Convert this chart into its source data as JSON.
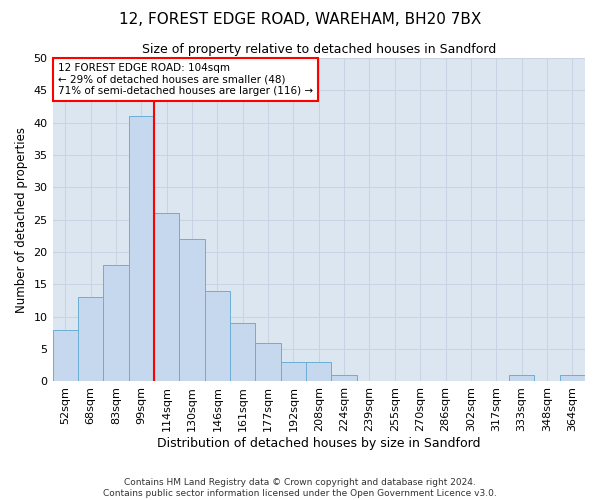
{
  "title": "12, FOREST EDGE ROAD, WAREHAM, BH20 7BX",
  "subtitle": "Size of property relative to detached houses in Sandford",
  "xlabel": "Distribution of detached houses by size in Sandford",
  "ylabel": "Number of detached properties",
  "bin_labels": [
    "52sqm",
    "68sqm",
    "83sqm",
    "99sqm",
    "114sqm",
    "130sqm",
    "146sqm",
    "161sqm",
    "177sqm",
    "192sqm",
    "208sqm",
    "224sqm",
    "239sqm",
    "255sqm",
    "270sqm",
    "286sqm",
    "302sqm",
    "317sqm",
    "333sqm",
    "348sqm",
    "364sqm"
  ],
  "bar_values": [
    8,
    13,
    18,
    41,
    26,
    22,
    14,
    9,
    6,
    3,
    3,
    1,
    0,
    0,
    0,
    0,
    0,
    0,
    1,
    0,
    1
  ],
  "bar_color": "#c5d8ed",
  "bar_edgecolor": "#6baed6",
  "grid_color": "#c8d4e3",
  "background_color": "#dce6f0",
  "ylim": [
    0,
    50
  ],
  "yticks": [
    0,
    5,
    10,
    15,
    20,
    25,
    30,
    35,
    40,
    45,
    50
  ],
  "property_label": "12 FOREST EDGE ROAD: 104sqm",
  "annotation_line1": "← 29% of detached houses are smaller (48)",
  "annotation_line2": "71% of semi-detached houses are larger (116) →",
  "red_line_x": 3.5,
  "footnote1": "Contains HM Land Registry data © Crown copyright and database right 2024.",
  "footnote2": "Contains public sector information licensed under the Open Government Licence v3.0.",
  "title_fontsize": 11,
  "subtitle_fontsize": 9,
  "ylabel_fontsize": 8.5,
  "xlabel_fontsize": 9,
  "tick_fontsize": 8,
  "annot_fontsize": 7.5,
  "footnote_fontsize": 6.5
}
